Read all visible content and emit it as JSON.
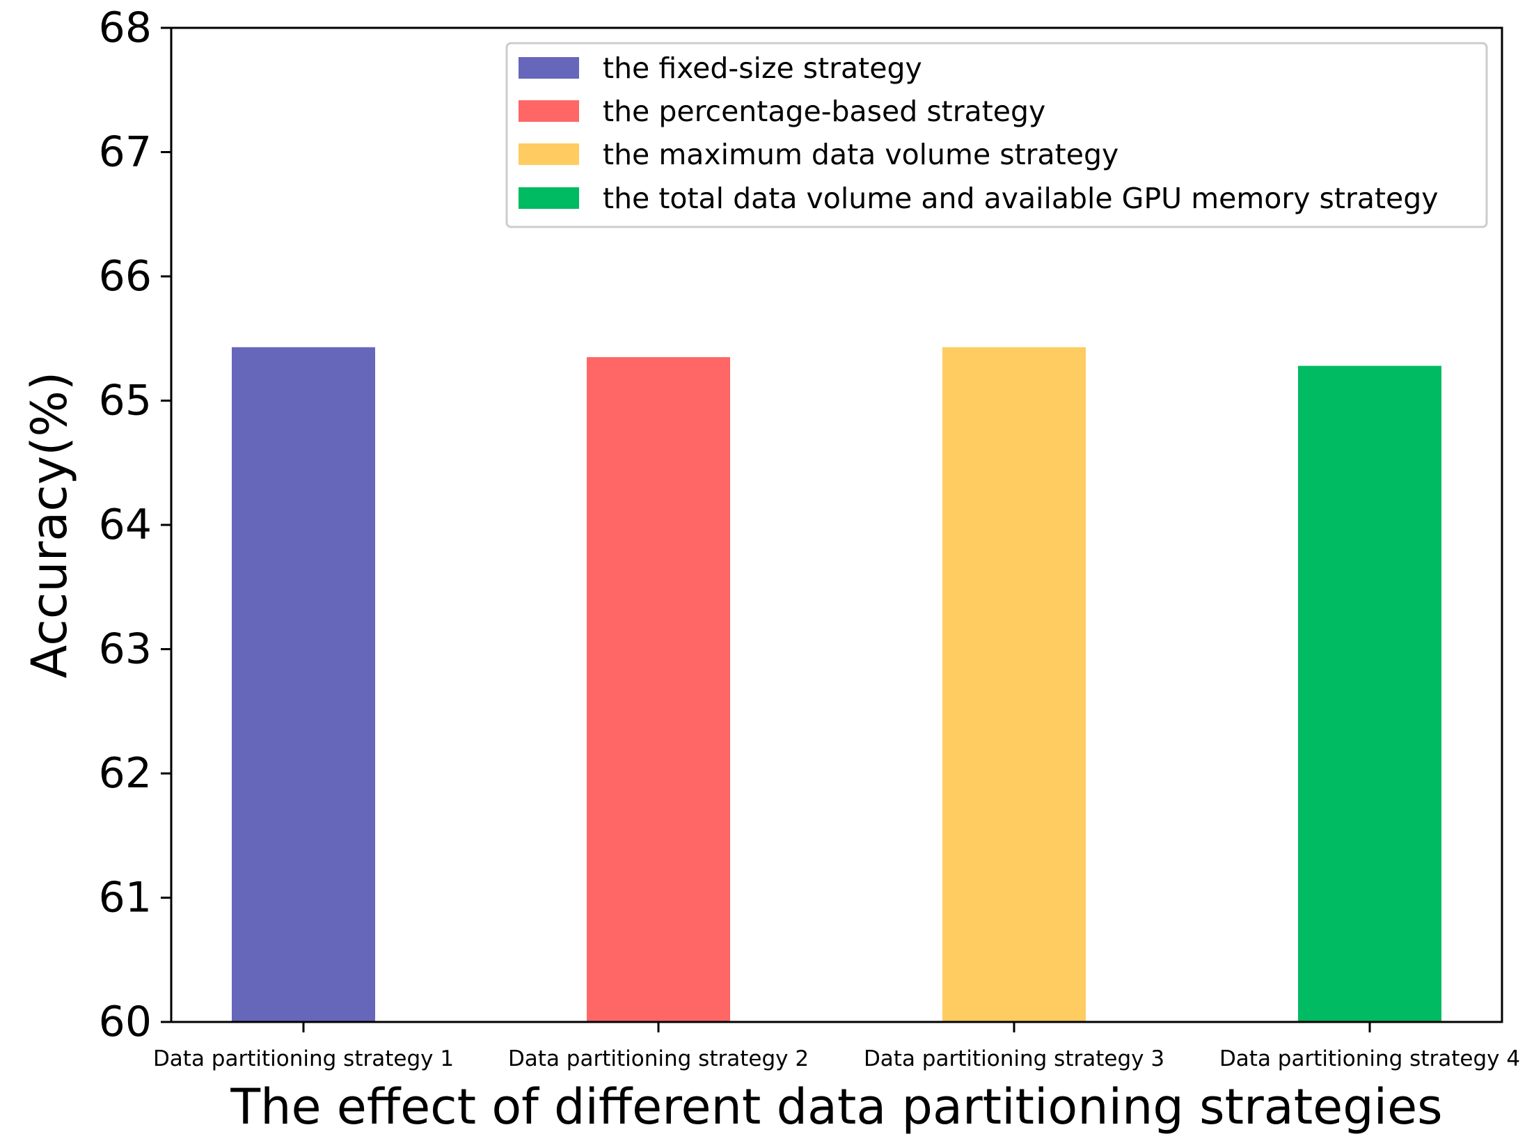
{
  "chart_data": {
    "type": "bar",
    "categories": [
      "Data partitioning strategy 1",
      "Data partitioning strategy 2",
      "Data partitioning strategy 3",
      "Data partitioning strategy 4"
    ],
    "values": [
      65.43,
      65.35,
      65.43,
      65.28
    ],
    "colors": [
      "#6666bb",
      "#ff6666",
      "#ffcc61",
      "#00bb61"
    ],
    "legend": [
      "the fixed-size strategy",
      "the percentage-based strategy",
      "the maximum data volume strategy",
      "the total data volume and available GPU memory strategy"
    ],
    "legend_position": "top-right",
    "title": "",
    "xlabel": "The effect of different data partitioning strategies",
    "ylabel": "Accuracy(%)",
    "ylim": [
      60,
      68
    ],
    "yticks": [
      60,
      61,
      62,
      63,
      64,
      65,
      66,
      67,
      68
    ],
    "grid": false
  }
}
